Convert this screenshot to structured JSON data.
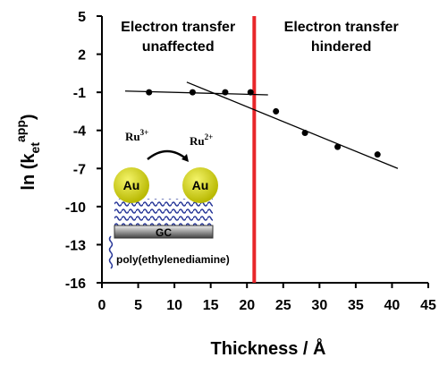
{
  "chart_data": {
    "type": "scatter",
    "x_label": "Thickness / Å",
    "y_label": [
      "ln  (k",
      "et",
      "app",
      ")"
    ],
    "x": [
      6.5,
      12.5,
      17,
      20.5,
      24,
      28,
      32.5,
      38
    ],
    "series": [
      {
        "color": "#000000",
        "values": [
          -1,
          -1,
          -1,
          -1,
          -2.5,
          -4.2,
          -5.3,
          -5.9
        ]
      }
    ],
    "fit_lines": [
      {
        "x": [
          3.2,
          22.9
        ],
        "y": [
          -0.9,
          -1.2
        ]
      },
      {
        "x": [
          11.7,
          40.8
        ],
        "y": [
          -0.2,
          -7.0
        ]
      }
    ],
    "threshold": {
      "x": 21,
      "color": "#e8262a"
    },
    "xlim": [
      0,
      45
    ],
    "xticks": [
      0,
      5,
      10,
      15,
      20,
      25,
      30,
      35,
      40,
      45
    ],
    "ylim": [
      -16,
      5
    ],
    "yticks": [
      5,
      2,
      -1,
      -4,
      -7,
      -10,
      -13,
      -16
    ],
    "annotations": [
      {
        "lines": [
          "Electron transfer",
          "unaffected"
        ]
      },
      {
        "lines": [
          "Electron transfer",
          "hindered"
        ]
      }
    ],
    "inset": {
      "ru_left": [
        "Ru",
        "3+"
      ],
      "ru_right": [
        "Ru",
        "2+"
      ],
      "particles": [
        "Au",
        "Au"
      ],
      "electrode": "GC",
      "legend": "poly(ethylenediamine)"
    }
  }
}
